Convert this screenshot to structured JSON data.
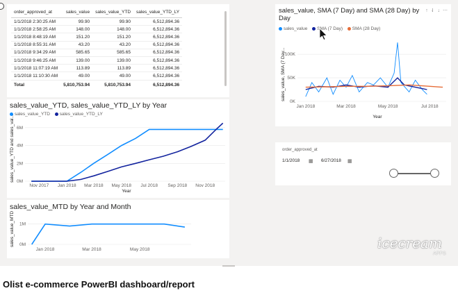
{
  "table": {
    "headers": [
      "order_approved_at",
      "sales_value",
      "sales_value_YTD",
      "sales_value_YTD_LY"
    ],
    "rows": [
      [
        "1/1/2018 2:30:25 AM",
        "99.90",
        "99.90",
        "6,512,894.36"
      ],
      [
        "1/1/2018 2:58:25 AM",
        "148.00",
        "148.00",
        "6,512,894.36"
      ],
      [
        "1/1/2018 8:48:19 AM",
        "151.20",
        "151.20",
        "6,512,894.36"
      ],
      [
        "1/1/2018 8:55:31 AM",
        "43.20",
        "43.20",
        "6,512,894.36"
      ],
      [
        "1/1/2018 9:34:29 AM",
        "585.65",
        "585.65",
        "6,512,894.36"
      ],
      [
        "1/1/2018 9:46:25 AM",
        "139.00",
        "139.00",
        "6,512,894.36"
      ],
      [
        "1/1/2018 11:07:19 AM",
        "113.89",
        "113.89",
        "6,512,894.36"
      ],
      [
        "1/1/2018 11:10:30 AM",
        "49.00",
        "49.00",
        "6,512,894.36"
      ]
    ],
    "total": [
      "Total",
      "5,810,753.94",
      "5,810,753.94",
      "6,512,894.36"
    ]
  },
  "sma_chart": {
    "title_line1": "sales_value, SMA (7 Day) and SMA (28 Day) by",
    "title_line2": "Day",
    "toolbar": "↑ ⇃ ↓ ⋯",
    "legend": [
      "sales_value",
      "SMA (7 Day)",
      "SMA (28 Day)"
    ],
    "colors": [
      "#118dff",
      "#12239e",
      "#e66c37"
    ],
    "ylabel": "sales_value, SMA (7 Day...",
    "xlabel": "Year",
    "yticks": [
      "100K",
      "50K",
      "0K"
    ],
    "xticks": [
      "Jan 2018",
      "Mar 2018",
      "May 2018",
      "Jul 2018"
    ]
  },
  "ytd_chart": {
    "title": "sales_value_YTD, sales_value_YTD_LY by Year",
    "legend": [
      "sales_value_YTD",
      "sales_value_YTD_LY"
    ],
    "colors": [
      "#118dff",
      "#12239e"
    ],
    "ylabel": "sales_value_YTD and sales_val...",
    "xlabel": "Year",
    "yticks": [
      "6M",
      "4M",
      "2M",
      "0M"
    ],
    "xticks": [
      "Nov 2017",
      "Jan 2018",
      "Mar 2018",
      "May 2018",
      "Jul 2018",
      "Sep 2018",
      "Nov 2018"
    ]
  },
  "mtd_chart": {
    "title": "sales_value_MTD by Year and Month",
    "color": "#118dff",
    "ylabel": "sales_value_MTD",
    "yticks": [
      "1M",
      "0M"
    ],
    "xticks": [
      "Jan 2018",
      "Mar 2018",
      "May 2018"
    ]
  },
  "slicer": {
    "label": "order_approved_at",
    "start": "1/1/2018",
    "end": "6/27/2018",
    "calendar_icon": "calendar-icon"
  },
  "watermark": "icecream",
  "watermark_sub": "APPS",
  "caption": "Olist e-commerce PowerBI dashboard/report",
  "chart_data": [
    {
      "type": "line",
      "title": "sales_value_YTD, sales_value_YTD_LY by Year",
      "xlabel": "Year",
      "ylabel": "sales_value_YTD and sales_val...",
      "x": [
        "2017-10-15",
        "2017-11-15",
        "2017-12-15",
        "2018-01-01",
        "2018-02-01",
        "2018-03-01",
        "2018-04-01",
        "2018-05-01",
        "2018-06-01",
        "2018-07-01",
        "2018-08-01",
        "2018-09-01",
        "2018-10-01",
        "2018-11-01",
        "2018-11-25",
        "2018-12-10"
      ],
      "ylim": [
        0,
        7
      ],
      "series": [
        {
          "name": "sales_value_YTD",
          "values": [
            0,
            0,
            0,
            0,
            1.0,
            2.0,
            3.0,
            4.0,
            4.8,
            5.8,
            5.8,
            5.8,
            5.8,
            5.8,
            5.8,
            5.8
          ]
        },
        {
          "name": "sales_value_YTD_LY",
          "values": [
            0,
            0,
            0,
            0,
            0.2,
            0.6,
            1.1,
            1.6,
            2.0,
            2.4,
            2.8,
            3.3,
            3.9,
            4.6,
            5.8,
            6.5
          ]
        }
      ],
      "yunit": "M"
    },
    {
      "type": "line",
      "title": "sales_value_MTD by Year and Month",
      "ylabel": "sales_value_MTD",
      "x": [
        "2017-12-15",
        "2018-01-01",
        "2018-02-01",
        "2018-03-01",
        "2018-04-01",
        "2018-05-01",
        "2018-06-01",
        "2018-06-27"
      ],
      "values": [
        0.0,
        1.0,
        0.9,
        1.0,
        1.0,
        1.0,
        1.0,
        0.85
      ],
      "ylim": [
        0,
        1.5
      ],
      "yunit": "M"
    },
    {
      "type": "line",
      "title": "sales_value, SMA (7 Day) and SMA (28 Day) by Day",
      "xlabel": "Year",
      "xlim": [
        "2017-12-20",
        "2018-07-25"
      ],
      "ylim": [
        0,
        140
      ],
      "yunit": "K",
      "series": [
        {
          "name": "sales_value",
          "x": [
            "2018-01-01",
            "2018-01-10",
            "2018-01-20",
            "2018-02-01",
            "2018-02-10",
            "2018-02-20",
            "2018-03-01",
            "2018-03-10",
            "2018-03-20",
            "2018-04-01",
            "2018-04-10",
            "2018-04-20",
            "2018-05-01",
            "2018-05-10",
            "2018-05-15",
            "2018-05-20",
            "2018-06-01",
            "2018-06-10",
            "2018-06-20",
            "2018-06-27"
          ],
          "values": [
            10,
            40,
            20,
            50,
            15,
            45,
            30,
            55,
            20,
            40,
            35,
            50,
            30,
            60,
            125,
            40,
            20,
            45,
            25,
            15
          ]
        },
        {
          "name": "SMA (7 Day)",
          "x": [
            "2018-01-01",
            "2018-01-20",
            "2018-02-10",
            "2018-03-01",
            "2018-03-20",
            "2018-04-10",
            "2018-05-01",
            "2018-05-15",
            "2018-05-25",
            "2018-06-10",
            "2018-06-27"
          ],
          "values": [
            25,
            32,
            30,
            35,
            30,
            33,
            30,
            50,
            35,
            30,
            25
          ]
        },
        {
          "name": "SMA (28 Day)",
          "x": [
            "2018-01-01",
            "2018-02-01",
            "2018-03-01",
            "2018-04-01",
            "2018-05-01",
            "2018-06-01",
            "2018-07-01",
            "2018-07-20"
          ],
          "values": [
            30,
            31,
            32,
            32,
            33,
            35,
            32,
            30
          ]
        }
      ]
    }
  ]
}
